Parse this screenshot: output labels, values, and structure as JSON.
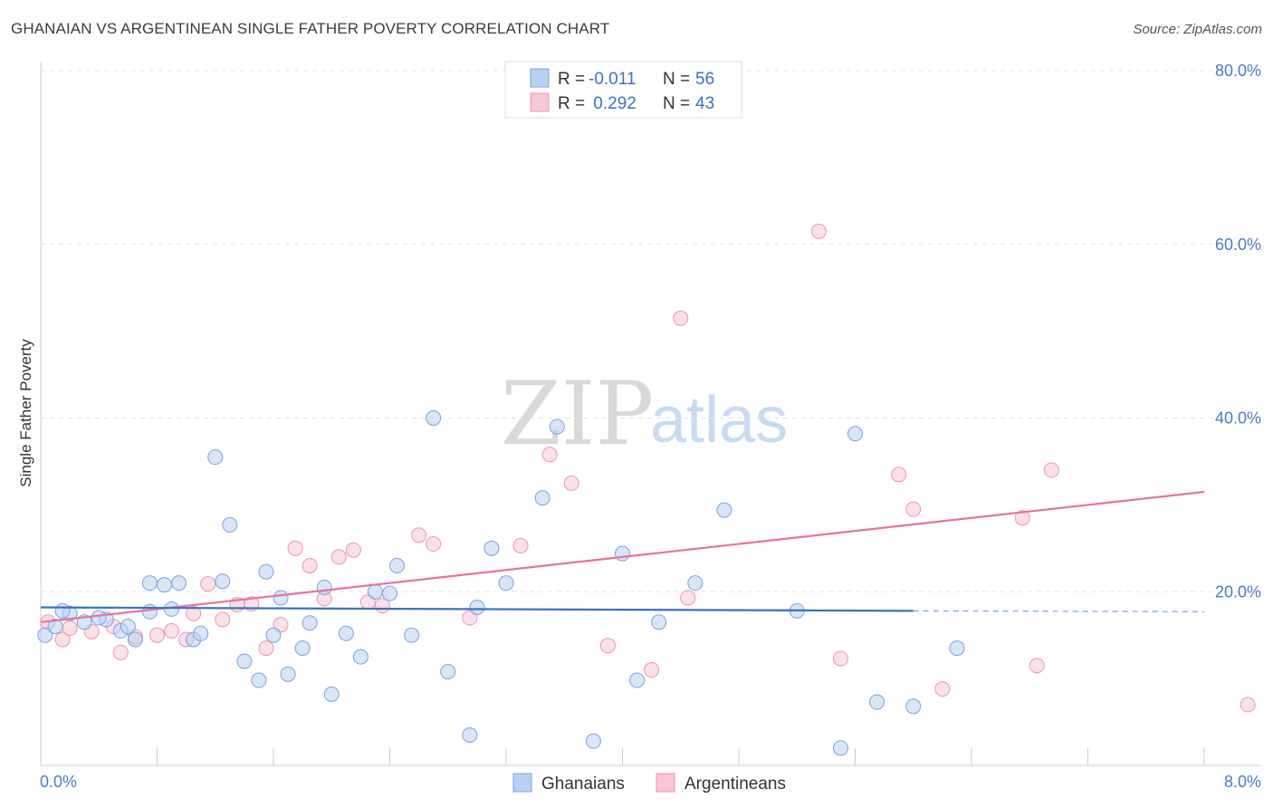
{
  "header": {
    "title": "GHANAIAN VS ARGENTINEAN SINGLE FATHER POVERTY CORRELATION CHART",
    "source": "Source: ZipAtlas.com"
  },
  "watermark": {
    "zip": "ZIP",
    "atlas": "atlas"
  },
  "legend_top": {
    "rows": [
      {
        "r_label": "R = ",
        "r_value": "-0.011",
        "n_label": "N = ",
        "n_value": "56",
        "fill": "#b8d1f3",
        "stroke": "#7aa3de"
      },
      {
        "r_label": "R = ",
        "r_value": " 0.292",
        "n_label": "N = ",
        "n_value": "43",
        "fill": "#f9c6d5",
        "stroke": "#ec94b0"
      }
    ]
  },
  "legend_bottom": {
    "items": [
      {
        "label": "Ghanaians",
        "fill": "#b8d1f3",
        "stroke": "#7aa3de"
      },
      {
        "label": "Argentineans",
        "fill": "#f9c6d5",
        "stroke": "#ec94b0"
      }
    ]
  },
  "chart_data": {
    "type": "scatter",
    "title": "GHANAIAN VS ARGENTINEAN SINGLE FATHER POVERTY CORRELATION CHART",
    "xlabel": "",
    "ylabel": "Single Father Poverty",
    "xlim": [
      0,
      8
    ],
    "ylim": [
      0,
      80
    ],
    "x_tick_labels": [
      "0.0%",
      "8.0%"
    ],
    "y_ticks": [
      20,
      40,
      60,
      80
    ],
    "y_tick_labels": [
      "20.0%",
      "40.0%",
      "60.0%",
      "80.0%"
    ],
    "grid": true,
    "colors": {
      "ghanaians": "#3a72c4",
      "argentineans": "#e8729a"
    },
    "series": [
      {
        "name": "Ghanaians",
        "trend": {
          "x0": 0.0,
          "y0": 18.2,
          "x1": 6.0,
          "y1": 17.8,
          "dashed_to_x": 8.0,
          "dashed_to_y": 17.7
        },
        "points": [
          [
            0.03,
            15.0
          ],
          [
            0.1,
            16.0
          ],
          [
            0.2,
            17.5
          ],
          [
            0.3,
            16.5
          ],
          [
            0.45,
            16.8
          ],
          [
            0.4,
            17.0
          ],
          [
            0.55,
            15.5
          ],
          [
            0.65,
            14.5
          ],
          [
            0.75,
            17.7
          ],
          [
            0.75,
            21.0
          ],
          [
            0.95,
            21.0
          ],
          [
            0.85,
            20.8
          ],
          [
            1.05,
            14.5
          ],
          [
            1.1,
            15.2
          ],
          [
            1.25,
            21.2
          ],
          [
            1.3,
            27.7
          ],
          [
            1.2,
            35.5
          ],
          [
            1.4,
            12.0
          ],
          [
            1.5,
            9.8
          ],
          [
            1.55,
            22.3
          ],
          [
            1.65,
            19.3
          ],
          [
            1.7,
            10.5
          ],
          [
            1.8,
            13.5
          ],
          [
            1.85,
            16.4
          ],
          [
            1.95,
            20.5
          ],
          [
            2.0,
            8.2
          ],
          [
            2.1,
            15.2
          ],
          [
            2.2,
            12.5
          ],
          [
            2.3,
            20.0
          ],
          [
            2.4,
            19.8
          ],
          [
            2.45,
            23.0
          ],
          [
            2.55,
            15.0
          ],
          [
            2.7,
            40.0
          ],
          [
            2.8,
            10.8
          ],
          [
            2.95,
            3.5
          ],
          [
            3.0,
            18.2
          ],
          [
            3.1,
            25.0
          ],
          [
            3.2,
            21.0
          ],
          [
            3.45,
            30.8
          ],
          [
            3.55,
            39.0
          ],
          [
            3.8,
            2.8
          ],
          [
            4.0,
            24.4
          ],
          [
            4.1,
            9.8
          ],
          [
            4.25,
            16.5
          ],
          [
            4.5,
            21.0
          ],
          [
            4.7,
            29.4
          ],
          [
            5.2,
            17.8
          ],
          [
            5.5,
            2.0
          ],
          [
            5.6,
            38.2
          ],
          [
            5.75,
            7.3
          ],
          [
            6.0,
            6.8
          ],
          [
            6.3,
            13.5
          ],
          [
            0.15,
            17.8
          ],
          [
            0.6,
            16.0
          ],
          [
            0.9,
            18.0
          ],
          [
            1.6,
            15.0
          ]
        ]
      },
      {
        "name": "Argentineans",
        "trend": {
          "x0": 0.0,
          "y0": 16.5,
          "x1": 8.0,
          "y1": 31.5
        },
        "points": [
          [
            0.05,
            16.5
          ],
          [
            0.15,
            14.5
          ],
          [
            0.2,
            15.8
          ],
          [
            0.35,
            15.4
          ],
          [
            0.5,
            16.0
          ],
          [
            0.55,
            13.0
          ],
          [
            0.65,
            14.8
          ],
          [
            0.8,
            15.0
          ],
          [
            0.9,
            15.5
          ],
          [
            1.0,
            14.5
          ],
          [
            1.05,
            17.5
          ],
          [
            1.15,
            20.9
          ],
          [
            1.25,
            16.8
          ],
          [
            1.35,
            18.5
          ],
          [
            1.45,
            18.6
          ],
          [
            1.55,
            13.5
          ],
          [
            1.65,
            16.2
          ],
          [
            1.75,
            25.0
          ],
          [
            1.85,
            23.0
          ],
          [
            1.95,
            19.2
          ],
          [
            2.05,
            24.0
          ],
          [
            2.15,
            24.8
          ],
          [
            2.25,
            18.8
          ],
          [
            2.35,
            18.4
          ],
          [
            2.6,
            26.5
          ],
          [
            2.7,
            25.5
          ],
          [
            2.95,
            17.0
          ],
          [
            3.3,
            25.3
          ],
          [
            3.5,
            35.8
          ],
          [
            3.65,
            32.5
          ],
          [
            3.9,
            13.8
          ],
          [
            4.2,
            11.0
          ],
          [
            4.4,
            51.5
          ],
          [
            4.45,
            19.3
          ],
          [
            5.35,
            61.5
          ],
          [
            5.5,
            12.3
          ],
          [
            5.9,
            33.5
          ],
          [
            6.0,
            29.5
          ],
          [
            6.2,
            8.8
          ],
          [
            6.75,
            28.5
          ],
          [
            6.95,
            34.0
          ],
          [
            6.85,
            11.5
          ],
          [
            8.3,
            7.0
          ]
        ]
      }
    ]
  }
}
